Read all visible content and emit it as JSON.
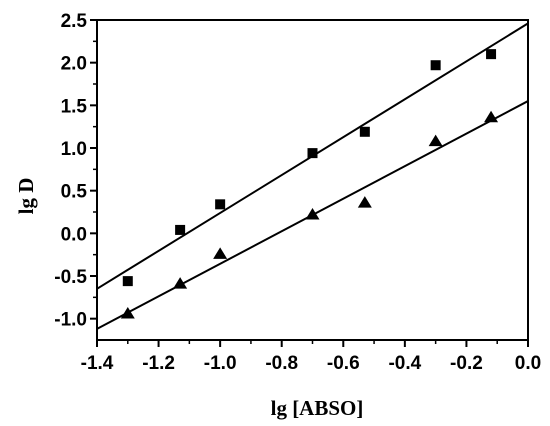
{
  "chart_data": {
    "type": "scatter",
    "title": "",
    "xlabel": "lg [ABSO]",
    "ylabel": "lg D",
    "xlim": [
      -1.4,
      0.0
    ],
    "ylim": [
      -1.25,
      2.5
    ],
    "x_ticks": [
      "-1.4",
      "-1.2",
      "-1.0",
      "-0.8",
      "-0.6",
      "-0.4",
      "-0.2",
      "0.0"
    ],
    "y_ticks": [
      "-1.0",
      "-0.5",
      "0.0",
      "0.5",
      "1.0",
      "1.5",
      "2.0",
      "2.5"
    ],
    "grid": false,
    "legend": "none",
    "series": [
      {
        "marker": "square",
        "color": "#000000",
        "points": [
          {
            "x": -1.3,
            "y": -0.56
          },
          {
            "x": -1.13,
            "y": 0.04
          },
          {
            "x": -1.0,
            "y": 0.34
          },
          {
            "x": -0.7,
            "y": 0.94
          },
          {
            "x": -0.53,
            "y": 1.19
          },
          {
            "x": -0.3,
            "y": 1.97
          },
          {
            "x": -0.12,
            "y": 2.1
          }
        ],
        "fit_line": {
          "x": [
            -1.4,
            0.0
          ],
          "y": [
            -0.65,
            2.46
          ]
        }
      },
      {
        "marker": "triangle",
        "color": "#000000",
        "points": [
          {
            "x": -1.3,
            "y": -0.94
          },
          {
            "x": -1.13,
            "y": -0.59
          },
          {
            "x": -1.0,
            "y": -0.24
          },
          {
            "x": -0.7,
            "y": 0.22
          },
          {
            "x": -0.53,
            "y": 0.36
          },
          {
            "x": -0.3,
            "y": 1.08
          },
          {
            "x": -0.12,
            "y": 1.36
          }
        ],
        "fit_line": {
          "x": [
            -1.4,
            0.0
          ],
          "y": [
            -1.12,
            1.55
          ]
        }
      }
    ]
  }
}
